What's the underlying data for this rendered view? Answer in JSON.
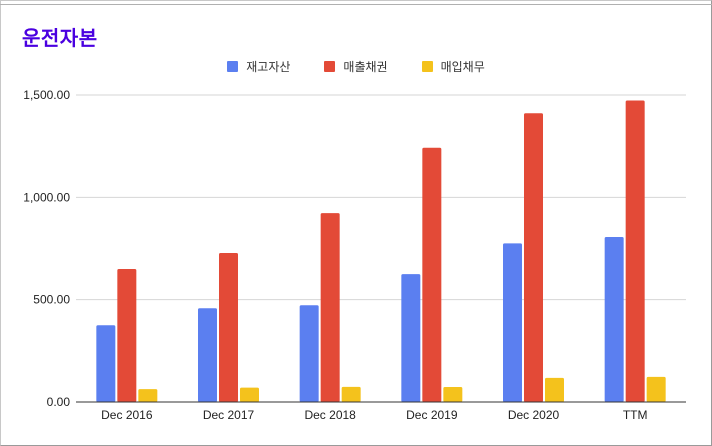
{
  "chart_data": {
    "type": "bar",
    "title": "운전자본",
    "categories": [
      "Dec 2016",
      "Dec 2017",
      "Dec 2018",
      "Dec 2019",
      "Dec 2020",
      "TTM"
    ],
    "series": [
      {
        "name": "재고자산",
        "color": "#5b7ff0",
        "values": [
          375,
          458,
          473,
          625,
          775,
          806
        ]
      },
      {
        "name": "매출채권",
        "color": "#e34a37",
        "values": [
          650,
          728,
          923,
          1242,
          1411,
          1473
        ]
      },
      {
        "name": "매입채무",
        "color": "#f4c21c",
        "values": [
          63,
          70,
          74,
          73,
          118,
          123
        ]
      }
    ],
    "y_ticks": [
      "0.00",
      "500.00",
      "1,000.00",
      "1,500.00"
    ],
    "ylim": [
      0,
      1500
    ],
    "grid": true,
    "legend_position": "top"
  }
}
